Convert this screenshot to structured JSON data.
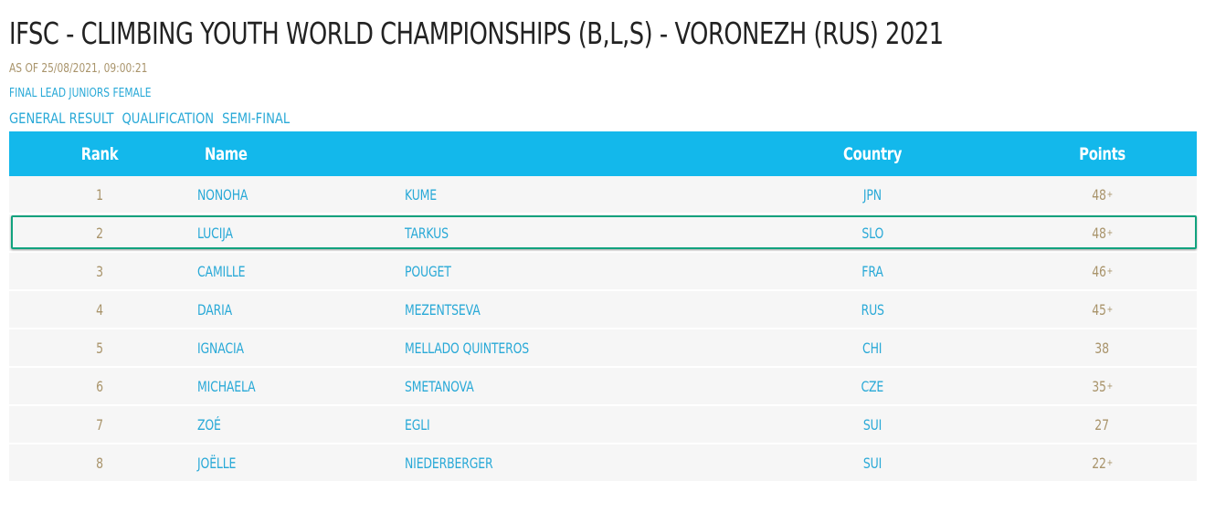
{
  "page": {
    "title": "IFSC - CLIMBING YOUTH WORLD CHAMPIONSHIPS (B,L,S) - VORONEZH (RUS) 2021",
    "as_of": "AS OF 25/08/2021, 09:00:21",
    "event_name": "FINAL LEAD JUNIORS FEMALE"
  },
  "result_links": [
    "GENERAL RESULT",
    "QUALIFICATION",
    "SEMI-FINAL"
  ],
  "table": {
    "headers": {
      "rank": "Rank",
      "name": "Name",
      "country": "Country",
      "points": "Points"
    },
    "rows": [
      {
        "rank": "1",
        "first": "NONOHA",
        "last": "KUME",
        "country": "JPN",
        "points": "48",
        "plus": "+"
      },
      {
        "rank": "2",
        "first": "LUCIJA",
        "last": "TARKUS",
        "country": "SLO",
        "points": "48",
        "plus": "+",
        "highlighted": true
      },
      {
        "rank": "3",
        "first": "CAMILLE",
        "last": "POUGET",
        "country": "FRA",
        "points": "46",
        "plus": "+"
      },
      {
        "rank": "4",
        "first": "DARIA",
        "last": "MEZENTSEVA",
        "country": "RUS",
        "points": "45",
        "plus": "+"
      },
      {
        "rank": "5",
        "first": "IGNACIA",
        "last": "MELLADO QUINTEROS",
        "country": "CHI",
        "points": "38",
        "plus": ""
      },
      {
        "rank": "6",
        "first": "MICHAELA",
        "last": "SMETANOVA",
        "country": "CZE",
        "points": "35",
        "plus": "+"
      },
      {
        "rank": "7",
        "first": "ZOÉ",
        "last": "EGLI",
        "country": "SUI",
        "points": "27",
        "plus": ""
      },
      {
        "rank": "8",
        "first": "JOËLLE",
        "last": "NIEDERBERGER",
        "country": "SUI",
        "points": "22",
        "plus": "+"
      }
    ]
  },
  "colors": {
    "header_bg": "#13b8eb",
    "link_blue": "#29a9d7",
    "gold_text": "#a9946b",
    "row_bg": "#f6f6f6",
    "highlight_border": "#11a27e"
  }
}
